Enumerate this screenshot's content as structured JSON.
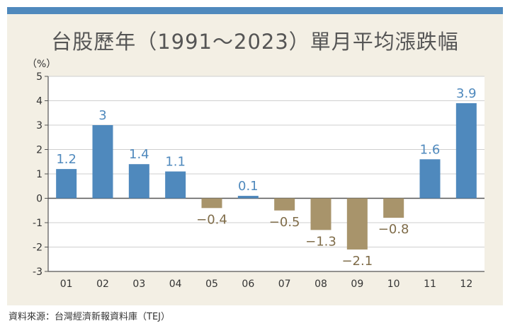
{
  "header": {
    "title": "台股歷年（1991～2023）單月平均漲跌幅",
    "unit": "（%）"
  },
  "footer": {
    "source": "資料來源：台灣經濟新報資料庫（TEJ）"
  },
  "colors": {
    "accent_bar": "#4f89bd",
    "positive": "#4f89bd",
    "negative": "#a8946b",
    "panel": "#f3efe4",
    "positive_label": "#4f89bd",
    "negative_label": "#7f6c49"
  },
  "chart_data": {
    "type": "bar",
    "title": "台股歷年（1991～2023）單月平均漲跌幅",
    "xlabel": "",
    "ylabel": "（%）",
    "categories": [
      "01",
      "02",
      "03",
      "04",
      "05",
      "06",
      "07",
      "08",
      "09",
      "10",
      "11",
      "12"
    ],
    "values": [
      1.2,
      3,
      1.4,
      1.1,
      -0.4,
      0.1,
      -0.5,
      -1.3,
      -2.1,
      -0.8,
      1.6,
      3.9
    ],
    "value_labels": [
      "1.2",
      "3",
      "1.4",
      "1.1",
      "−0.4",
      "0.1",
      "−0.5",
      "−1.3",
      "−2.1",
      "−0.8",
      "1.6",
      "3.9"
    ],
    "y_ticks": [
      "5",
      "4",
      "3",
      "2",
      "1",
      "0",
      "-1",
      "-2",
      "-3"
    ],
    "ylim": [
      -3,
      5
    ],
    "grid": true,
    "legend": "none"
  }
}
